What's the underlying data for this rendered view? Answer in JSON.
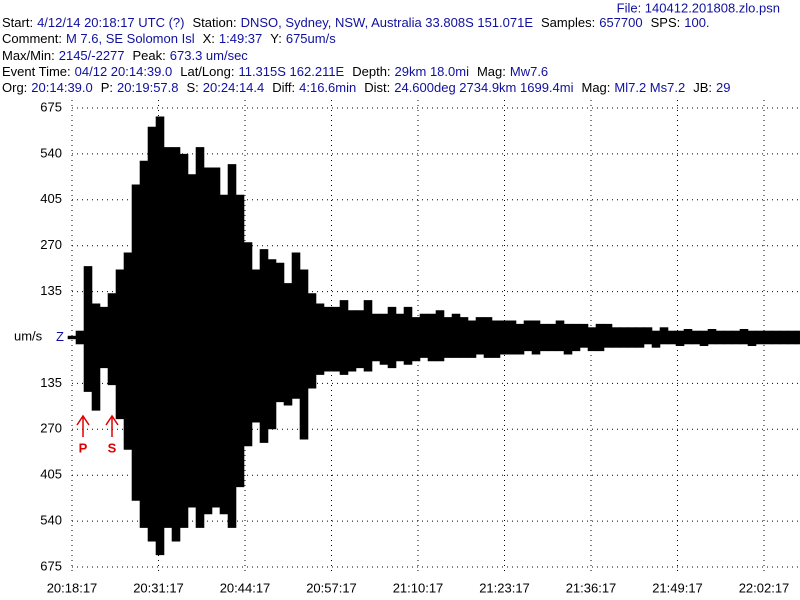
{
  "chart_data": {
    "type": "seismogram",
    "file": "File: 140412.201808.zlo.psn",
    "header": [
      [
        {
          "label": "Start:",
          "value": "4/12/14 20:18:17 UTC (?)"
        },
        {
          "label": "Station:",
          "value": "DNSO, Sydney, NSW, Australia 33.808S 151.071E"
        },
        {
          "label": "Samples:",
          "value": "657700"
        },
        {
          "label": "SPS:",
          "value": "100."
        }
      ],
      [
        {
          "label": "Comment:",
          "value": "M 7.6, SE Solomon Isl"
        },
        {
          "label": "X:",
          "value": "1:49:37"
        },
        {
          "label": "Y:",
          "value": "675um/s"
        }
      ],
      [
        {
          "label": "Max/Min:",
          "value": "2145/-2277"
        },
        {
          "label": "Peak:",
          "value": "673.3 um/sec"
        }
      ],
      [
        {
          "label": "Event Time:",
          "value": "04/12 20:14:39.0"
        },
        {
          "label": "Lat/Long:",
          "value": "11.315S 162.211E"
        },
        {
          "label": "Depth:",
          "value": "29km 18.0mi"
        },
        {
          "label": "Mag:",
          "value": "Mw7.6"
        }
      ],
      [
        {
          "label": "Org:",
          "value": "20:14:39.0"
        },
        {
          "label": "P:",
          "value": "20:19:57.8"
        },
        {
          "label": "S:",
          "value": "20:24:14.4"
        },
        {
          "label": "Diff:",
          "value": "4:16.6min"
        },
        {
          "label": "Dist:",
          "value": "24.600deg 2734.9km 1699.4mi"
        },
        {
          "label": "Mag:",
          "value": "Ml7.2 Ms7.2"
        },
        {
          "label": "JB:",
          "value": "29"
        }
      ]
    ],
    "y_label": "um/s",
    "ylim": [
      -675,
      675
    ],
    "yticks": [
      {
        "value": 675,
        "label": "675"
      },
      {
        "value": 540,
        "label": "540"
      },
      {
        "value": 405,
        "label": "405"
      },
      {
        "value": 270,
        "label": "270"
      },
      {
        "value": 135,
        "label": "135"
      },
      {
        "value": 0,
        "label": "Z"
      },
      {
        "value": -135,
        "label": "135"
      },
      {
        "value": -270,
        "label": "270"
      },
      {
        "value": -405,
        "label": "405"
      },
      {
        "value": -540,
        "label": "540"
      },
      {
        "value": -675,
        "label": "675"
      }
    ],
    "categories": [
      "20:18:17",
      "20:31:17",
      "20:44:17",
      "20:57:17",
      "21:10:17",
      "21:23:17",
      "21:36:17",
      "21:49:17",
      "22:02:17"
    ],
    "grid": true,
    "color": "#000000",
    "annotations": [
      {
        "text": "P",
        "color": "#e00000"
      },
      {
        "text": "S",
        "color": "#e00000"
      }
    ],
    "envelope_max": [
      5,
      20,
      210,
      100,
      90,
      130,
      200,
      250,
      450,
      520,
      620,
      650,
      560,
      560,
      540,
      480,
      560,
      500,
      500,
      420,
      510,
      420,
      280,
      200,
      260,
      230,
      220,
      160,
      250,
      200,
      130,
      100,
      90,
      90,
      110,
      80,
      80,
      110,
      70,
      70,
      90,
      70,
      90,
      60,
      70,
      70,
      80,
      60,
      70,
      60,
      50,
      60,
      60,
      50,
      50,
      50,
      40,
      50,
      50,
      40,
      40,
      50,
      40,
      40,
      40,
      30,
      40,
      40,
      30,
      30,
      30,
      30,
      30,
      20,
      30,
      20,
      20,
      25,
      20,
      20,
      25,
      20,
      20,
      20,
      25,
      20,
      20,
      20,
      20,
      20,
      20,
      20
    ],
    "envelope_min": [
      -5,
      -20,
      -160,
      -215,
      -90,
      -140,
      -240,
      -330,
      -480,
      -560,
      -600,
      -640,
      -560,
      -600,
      -560,
      -500,
      -560,
      -520,
      -500,
      -520,
      -560,
      -440,
      -320,
      -250,
      -310,
      -270,
      -190,
      -200,
      -180,
      -300,
      -150,
      -110,
      -100,
      -100,
      -110,
      -100,
      -90,
      -100,
      -70,
      -80,
      -90,
      -70,
      -80,
      -70,
      -60,
      -70,
      -70,
      -60,
      -60,
      -60,
      -60,
      -50,
      -60,
      -60,
      -50,
      -50,
      -50,
      -40,
      -50,
      -40,
      -40,
      -40,
      -50,
      -40,
      -30,
      -40,
      -40,
      -30,
      -30,
      -30,
      -30,
      -30,
      -20,
      -30,
      -20,
      -20,
      -25,
      -20,
      -20,
      -25,
      -20,
      -20,
      -20,
      -20,
      -20,
      -25,
      -20,
      -20,
      -20,
      -20,
      -20,
      -20
    ]
  }
}
